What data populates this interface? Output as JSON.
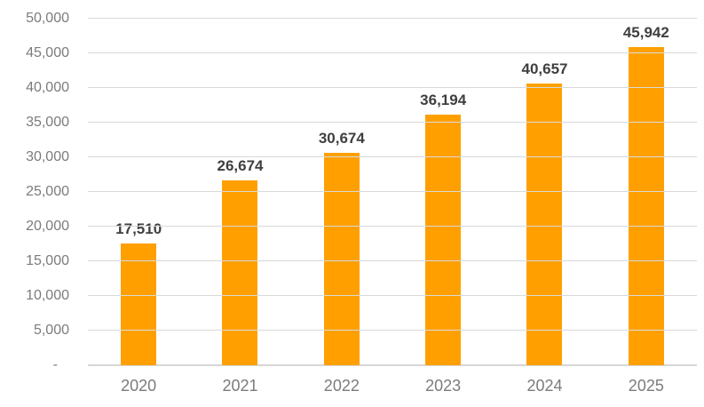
{
  "chart_data": {
    "type": "bar",
    "title": "",
    "xlabel": "",
    "ylabel": "",
    "categories": [
      "2020",
      "2021",
      "2022",
      "2023",
      "2024",
      "2025"
    ],
    "values": [
      17510,
      26674,
      30674,
      36194,
      40657,
      45942
    ],
    "value_labels": [
      "17,510",
      "26,674",
      "30,674",
      "36,194",
      "40,657",
      "45,942"
    ],
    "ylim": [
      0,
      50000
    ],
    "ytick_step": 5000,
    "ytick_labels": [
      "-",
      "5,000",
      "10,000",
      "15,000",
      "20,000",
      "25,000",
      "30,000",
      "35,000",
      "40,000",
      "45,000",
      "50,000"
    ],
    "grid": true,
    "legend": false
  },
  "colors": {
    "bar": "#FFA000",
    "gridline": "#D9D9D9",
    "axis_line": "#D6D6D6",
    "tick_text": "#7B7B7B",
    "value_text": "#3F3F3F",
    "background": "#FFFFFF"
  }
}
